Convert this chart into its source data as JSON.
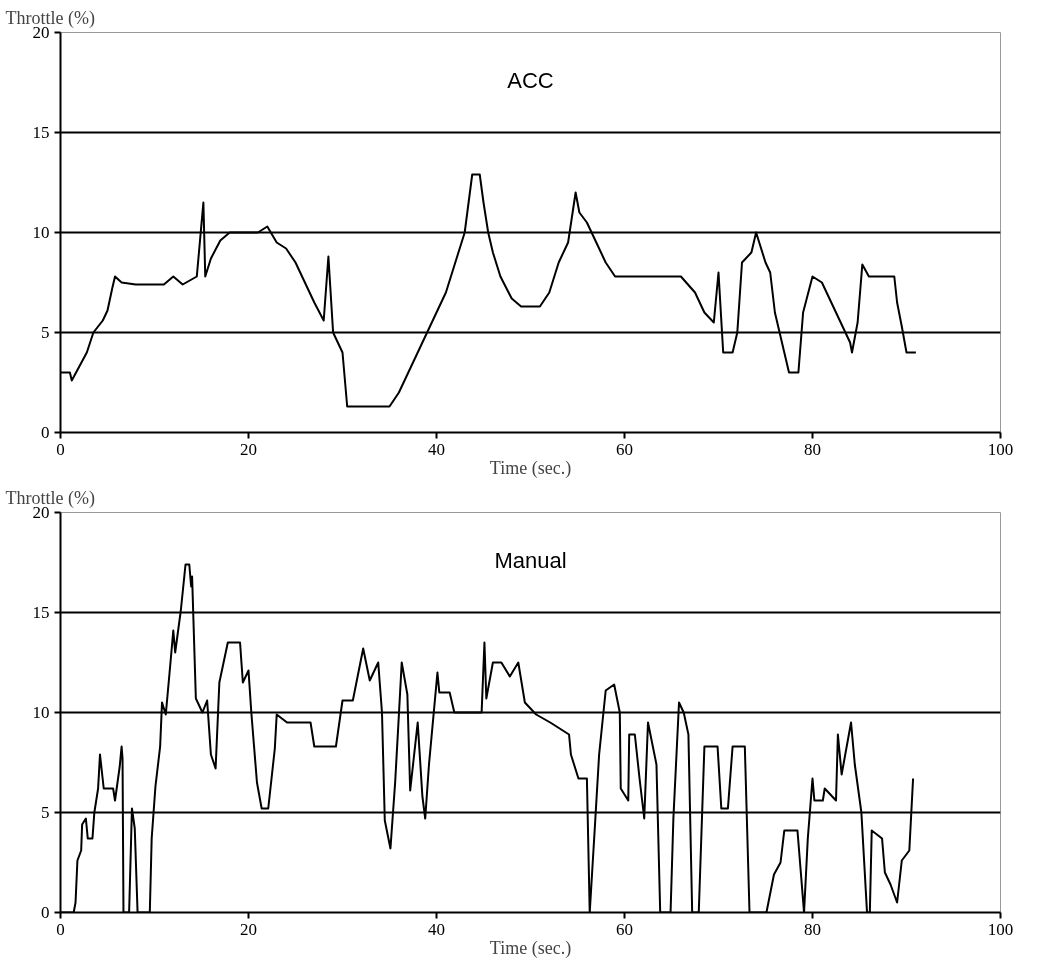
{
  "chart_data": [
    {
      "type": "line",
      "title": "ACC",
      "ylabel": "Throttle (%)",
      "xlabel": "Time (sec.)",
      "color": "#000000",
      "xlim": [
        0,
        100
      ],
      "ylim": [
        0,
        20
      ],
      "xticks": [
        0,
        20,
        40,
        60,
        80,
        100
      ],
      "yticks": [
        0,
        5,
        10,
        15,
        20
      ],
      "grid": "y",
      "x": [
        0,
        1,
        1.2,
        2,
        2.8,
        3.5,
        4.5,
        5,
        5.5,
        5.8,
        6.5,
        8,
        11,
        12,
        13,
        14.5,
        15.2,
        15.4,
        16,
        17,
        18,
        21,
        22,
        23,
        24,
        25,
        26,
        27,
        28,
        28.5,
        29,
        30,
        30.5,
        35,
        36,
        37,
        38,
        39,
        40,
        41,
        42,
        43,
        43.8,
        44.6,
        45,
        45.5,
        46,
        46.8,
        48,
        49,
        51,
        52,
        53,
        54,
        54.8,
        55.2,
        56,
        57,
        58,
        59,
        63,
        66,
        67.5,
        68.5,
        69.5,
        70,
        70.5,
        71.5,
        72,
        72.5,
        73.5,
        74,
        75,
        75.5,
        76,
        77,
        77.5,
        78.5,
        79,
        80,
        81,
        82,
        83,
        84,
        84.2,
        84.8,
        85.3,
        86,
        88.7,
        89,
        89.5,
        90,
        91
      ],
      "values": [
        3.0,
        3.0,
        2.6,
        3.3,
        4.0,
        5.0,
        5.6,
        6.1,
        7.2,
        7.8,
        7.5,
        7.4,
        7.4,
        7.8,
        7.4,
        7.8,
        11.5,
        7.8,
        8.7,
        9.6,
        10.0,
        10.0,
        10.3,
        9.5,
        9.2,
        8.5,
        7.5,
        6.5,
        5.6,
        8.8,
        5.0,
        4.0,
        1.3,
        1.3,
        2.0,
        3.0,
        4.0,
        5.0,
        6.0,
        7.0,
        8.5,
        10,
        12.9,
        12.9,
        11.5,
        10,
        9,
        7.8,
        6.7,
        6.3,
        6.3,
        7.0,
        8.5,
        9.5,
        12,
        11,
        10.5,
        9.5,
        8.5,
        7.8,
        7.8,
        7.8,
        7,
        6,
        5.5,
        8,
        4,
        4,
        5,
        8.5,
        9,
        10,
        8.5,
        8,
        6,
        4,
        3,
        3,
        6,
        7.8,
        7.5,
        6.5,
        5.5,
        4.5,
        4,
        5.5,
        8.4,
        7.8,
        7.8,
        6.5,
        5.3,
        4,
        4
      ]
    },
    {
      "type": "line",
      "title": "Manual",
      "ylabel": "Throttle (%)",
      "xlabel": "Time (sec.)",
      "color": "#000000",
      "xlim": [
        0,
        100
      ],
      "ylim": [
        0,
        20
      ],
      "xticks": [
        0,
        20,
        40,
        60,
        80,
        100
      ],
      "yticks": [
        0,
        5,
        10,
        15,
        20
      ],
      "grid": "y",
      "x": [
        0,
        1.4,
        1.6,
        1.8,
        2.2,
        2.3,
        2.7,
        2.9,
        3.4,
        3.6,
        4,
        4.2,
        4.6,
        5.6,
        5.8,
        6.3,
        6.5,
        6.6,
        6.7,
        7.3,
        7.6,
        7.9,
        8.2,
        9.5,
        9.7,
        10.1,
        10.6,
        10.8,
        11.2,
        11.7,
        12,
        12.2,
        12.8,
        13.3,
        13.7,
        13.9,
        14,
        14.4,
        15.1,
        15.6,
        16,
        16.5,
        16.9,
        17.8,
        19.1,
        19.4,
        20,
        20.3,
        20.9,
        21.4,
        22.1,
        22.8,
        23,
        24.1,
        26.6,
        27,
        29.3,
        30,
        31.1,
        32.2,
        32.9,
        33.8,
        34.2,
        34.5,
        35.1,
        35.6,
        36,
        36.3,
        36.9,
        37.2,
        38,
        38.5,
        38.8,
        39.2,
        40.1,
        40.3,
        41.4,
        41.9,
        44.8,
        45.1,
        45.3,
        46,
        46.9,
        47.8,
        48.7,
        49.4,
        50.6,
        52.1,
        54.1,
        54.3,
        55.1,
        56,
        56.3,
        56.9,
        57.3,
        58,
        58.9,
        59.5,
        59.6,
        60.4,
        60.5,
        61.1,
        61.6,
        62.1,
        62.5,
        63.4,
        63.8,
        64.9,
        65.2,
        65.8,
        66.3,
        66.8,
        67.2,
        67.9,
        68.5,
        69.9,
        70.3,
        71,
        71.5,
        72.8,
        73.3,
        75.1,
        75.9,
        76.6,
        77,
        78.4,
        79.1,
        79.5,
        80,
        80.2,
        81.1,
        81.3,
        82.5,
        82.7,
        83.1,
        84.1,
        84.5,
        85.2,
        85.8,
        86.1,
        86.3,
        87.4,
        87.7,
        88.3,
        89,
        89.5,
        90.3,
        90.7
      ],
      "values": [
        0,
        0,
        0.5,
        2.6,
        3.1,
        4.4,
        4.7,
        3.7,
        3.7,
        5,
        6.2,
        7.9,
        6.2,
        6.2,
        5.6,
        7.3,
        8.3,
        7.7,
        0,
        0,
        5.2,
        4.2,
        0,
        0,
        3.7,
        6.3,
        8.3,
        10.5,
        9.9,
        12.5,
        14.1,
        13,
        15.1,
        17.4,
        17.4,
        16.3,
        16.8,
        10.7,
        10,
        10.6,
        7.9,
        7.2,
        11.5,
        13.5,
        13.5,
        11.5,
        12.1,
        10,
        6.5,
        5.2,
        5.2,
        8.2,
        9.9,
        9.5,
        9.5,
        8.3,
        8.3,
        10.6,
        10.6,
        13.2,
        11.6,
        12.5,
        10,
        4.6,
        3.2,
        6.5,
        9.9,
        12.5,
        10.9,
        6.1,
        9.5,
        5.8,
        4.7,
        7.4,
        12,
        11,
        11,
        10,
        10,
        13.5,
        10.7,
        12.5,
        12.5,
        11.8,
        12.5,
        10.5,
        9.9,
        9.5,
        8.9,
        7.9,
        6.7,
        6.7,
        0,
        4.7,
        7.9,
        11.1,
        11.4,
        10,
        6.2,
        5.6,
        8.9,
        8.9,
        6.7,
        4.7,
        9.5,
        7.4,
        0,
        0,
        4.7,
        10.5,
        10,
        8.9,
        0,
        0,
        8.3,
        8.3,
        5.2,
        5.2,
        8.3,
        8.3,
        0,
        0,
        1.9,
        2.5,
        4.1,
        4.1,
        0,
        3.7,
        6.7,
        5.6,
        5.6,
        6.2,
        5.6,
        8.9,
        6.9,
        9.5,
        7.4,
        5,
        0,
        0,
        4.1,
        3.7,
        2,
        1.4,
        0.5,
        2.6,
        3.1,
        6.7
      ]
    }
  ]
}
